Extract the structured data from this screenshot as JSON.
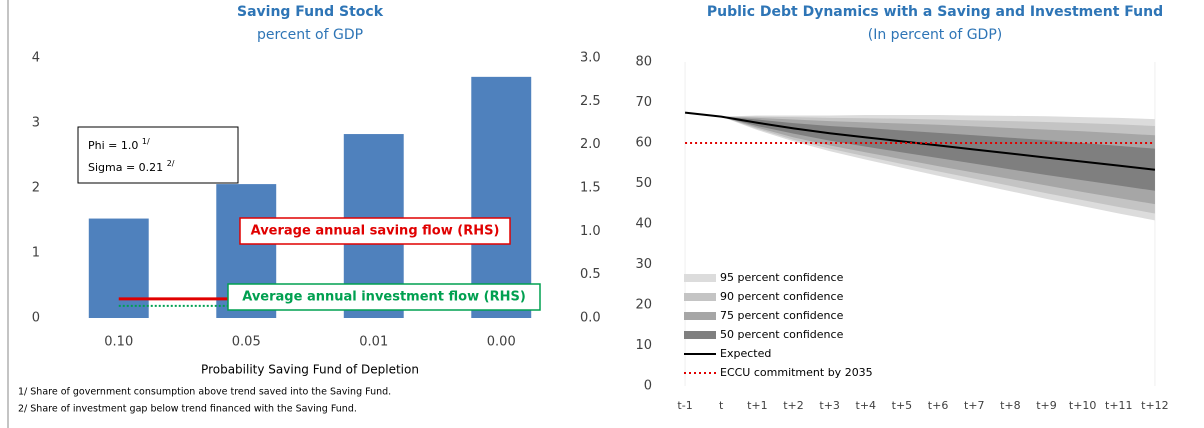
{
  "chart_data": [
    {
      "type": "bar",
      "title": "Saving Fund Stock",
      "subtitle": "percent of GDP",
      "categories": [
        "0.10",
        "0.05",
        "0.01",
        "0.00"
      ],
      "values": [
        1.53,
        2.06,
        2.83,
        3.71
      ],
      "color": "#4f81bd",
      "ylim": [
        0,
        4
      ],
      "yticks": [
        0,
        1,
        2,
        3,
        4
      ],
      "y2lim": [
        0,
        3
      ],
      "y2ticks": [
        {
          "value": 0,
          "label": "0.0"
        },
        0.5,
        {
          "value": 1,
          "label": "1.0"
        },
        1.5,
        {
          "value": 2,
          "label": "2.0"
        },
        2.5,
        {
          "value": 3,
          "label": "3.0"
        }
      ],
      "grid": false,
      "series": [
        {
          "name": "Average annual saving flow (RHS)",
          "color": "#e00000",
          "axis": "y2",
          "line_style": "solid",
          "values": [
            0.22,
            0.22,
            null,
            null
          ]
        },
        {
          "name": "Average annual investment flow (RHS)",
          "color": "#00a050",
          "axis": "y2",
          "line_style": "dotted",
          "values": [
            0.14,
            0.14,
            null,
            null
          ]
        }
      ],
      "annotations": [
        {
          "text": "Phi = 1.0",
          "note": "1/"
        },
        {
          "text": "Sigma = 0.21",
          "note": "2/"
        }
      ],
      "xlabel": "Probability Saving Fund of Depletion",
      "notes": [
        "1/ Share of government consumption above trend saved into the Saving Fund.",
        "2/ Share of investment gap below trend financed with the Saving Fund."
      ]
    },
    {
      "type": "fan",
      "title": "Public Debt Dynamics with a Saving and Investment Fund",
      "subtitle": "(In percent of GDP)",
      "categories": [
        "t-1",
        "t",
        "t+1",
        "t+2",
        "t+3",
        "t+4",
        "t+5",
        "t+6",
        "t+7",
        "t+8",
        "t+9",
        "t+10",
        "t+11",
        "t+12"
      ],
      "ylim": [
        0,
        80
      ],
      "yticks": [
        0,
        10,
        20,
        30,
        40,
        50,
        60,
        70,
        80
      ],
      "grid": false,
      "bands": [
        {
          "name": "95 percent confidence",
          "color": "#dcdcdc",
          "high": [
            null,
            66.5,
            66.8,
            66.8,
            66.8,
            66.9,
            66.9,
            66.9,
            66.8,
            66.7,
            66.6,
            66.4,
            66.2,
            65.9
          ],
          "low": [
            null,
            66.5,
            63.2,
            60.4,
            58.0,
            55.9,
            53.9,
            51.9,
            50.0,
            48.1,
            46.2,
            44.4,
            42.6,
            40.9
          ]
        },
        {
          "name": "90 percent confidence",
          "color": "#c4c4c4",
          "high": [
            null,
            66.5,
            66.5,
            66.4,
            66.2,
            66.1,
            66.0,
            65.8,
            65.6,
            65.4,
            65.2,
            64.9,
            64.6,
            64.2
          ],
          "low": [
            null,
            66.5,
            63.5,
            60.8,
            58.6,
            56.7,
            54.8,
            53.0,
            51.2,
            49.4,
            47.6,
            45.9,
            44.2,
            42.6
          ]
        },
        {
          "name": "75 percent confidence",
          "color": "#a6a6a6",
          "high": [
            null,
            66.5,
            66.2,
            65.8,
            65.4,
            65.1,
            64.8,
            64.5,
            64.1,
            63.7,
            63.3,
            62.9,
            62.4,
            61.9
          ],
          "low": [
            null,
            66.5,
            63.8,
            61.4,
            59.4,
            57.7,
            56.0,
            54.3,
            52.7,
            51.1,
            49.5,
            47.9,
            46.4,
            44.9
          ]
        },
        {
          "name": "50 percent confidence",
          "color": "#7f7f7f",
          "high": [
            null,
            66.5,
            65.8,
            64.9,
            64.2,
            63.7,
            63.1,
            62.5,
            61.9,
            61.3,
            60.7,
            60.0,
            59.3,
            58.6
          ],
          "low": [
            null,
            66.5,
            64.2,
            62.3,
            60.6,
            59.1,
            57.7,
            56.3,
            54.9,
            53.5,
            52.1,
            50.8,
            49.5,
            48.2
          ]
        }
      ],
      "series": [
        {
          "name": "Expected",
          "color": "#000000",
          "line_style": "solid",
          "values": [
            67.5,
            66.5,
            65.0,
            63.6,
            62.4,
            61.4,
            60.4,
            59.4,
            58.4,
            57.4,
            56.4,
            55.4,
            54.4,
            53.4
          ]
        },
        {
          "name": "ECCU commitment by 2035",
          "color": "#e00000",
          "line_style": "dotted",
          "values": [
            60,
            60,
            60,
            60,
            60,
            60,
            60,
            60,
            60,
            60,
            60,
            60,
            60,
            60
          ]
        }
      ]
    }
  ]
}
